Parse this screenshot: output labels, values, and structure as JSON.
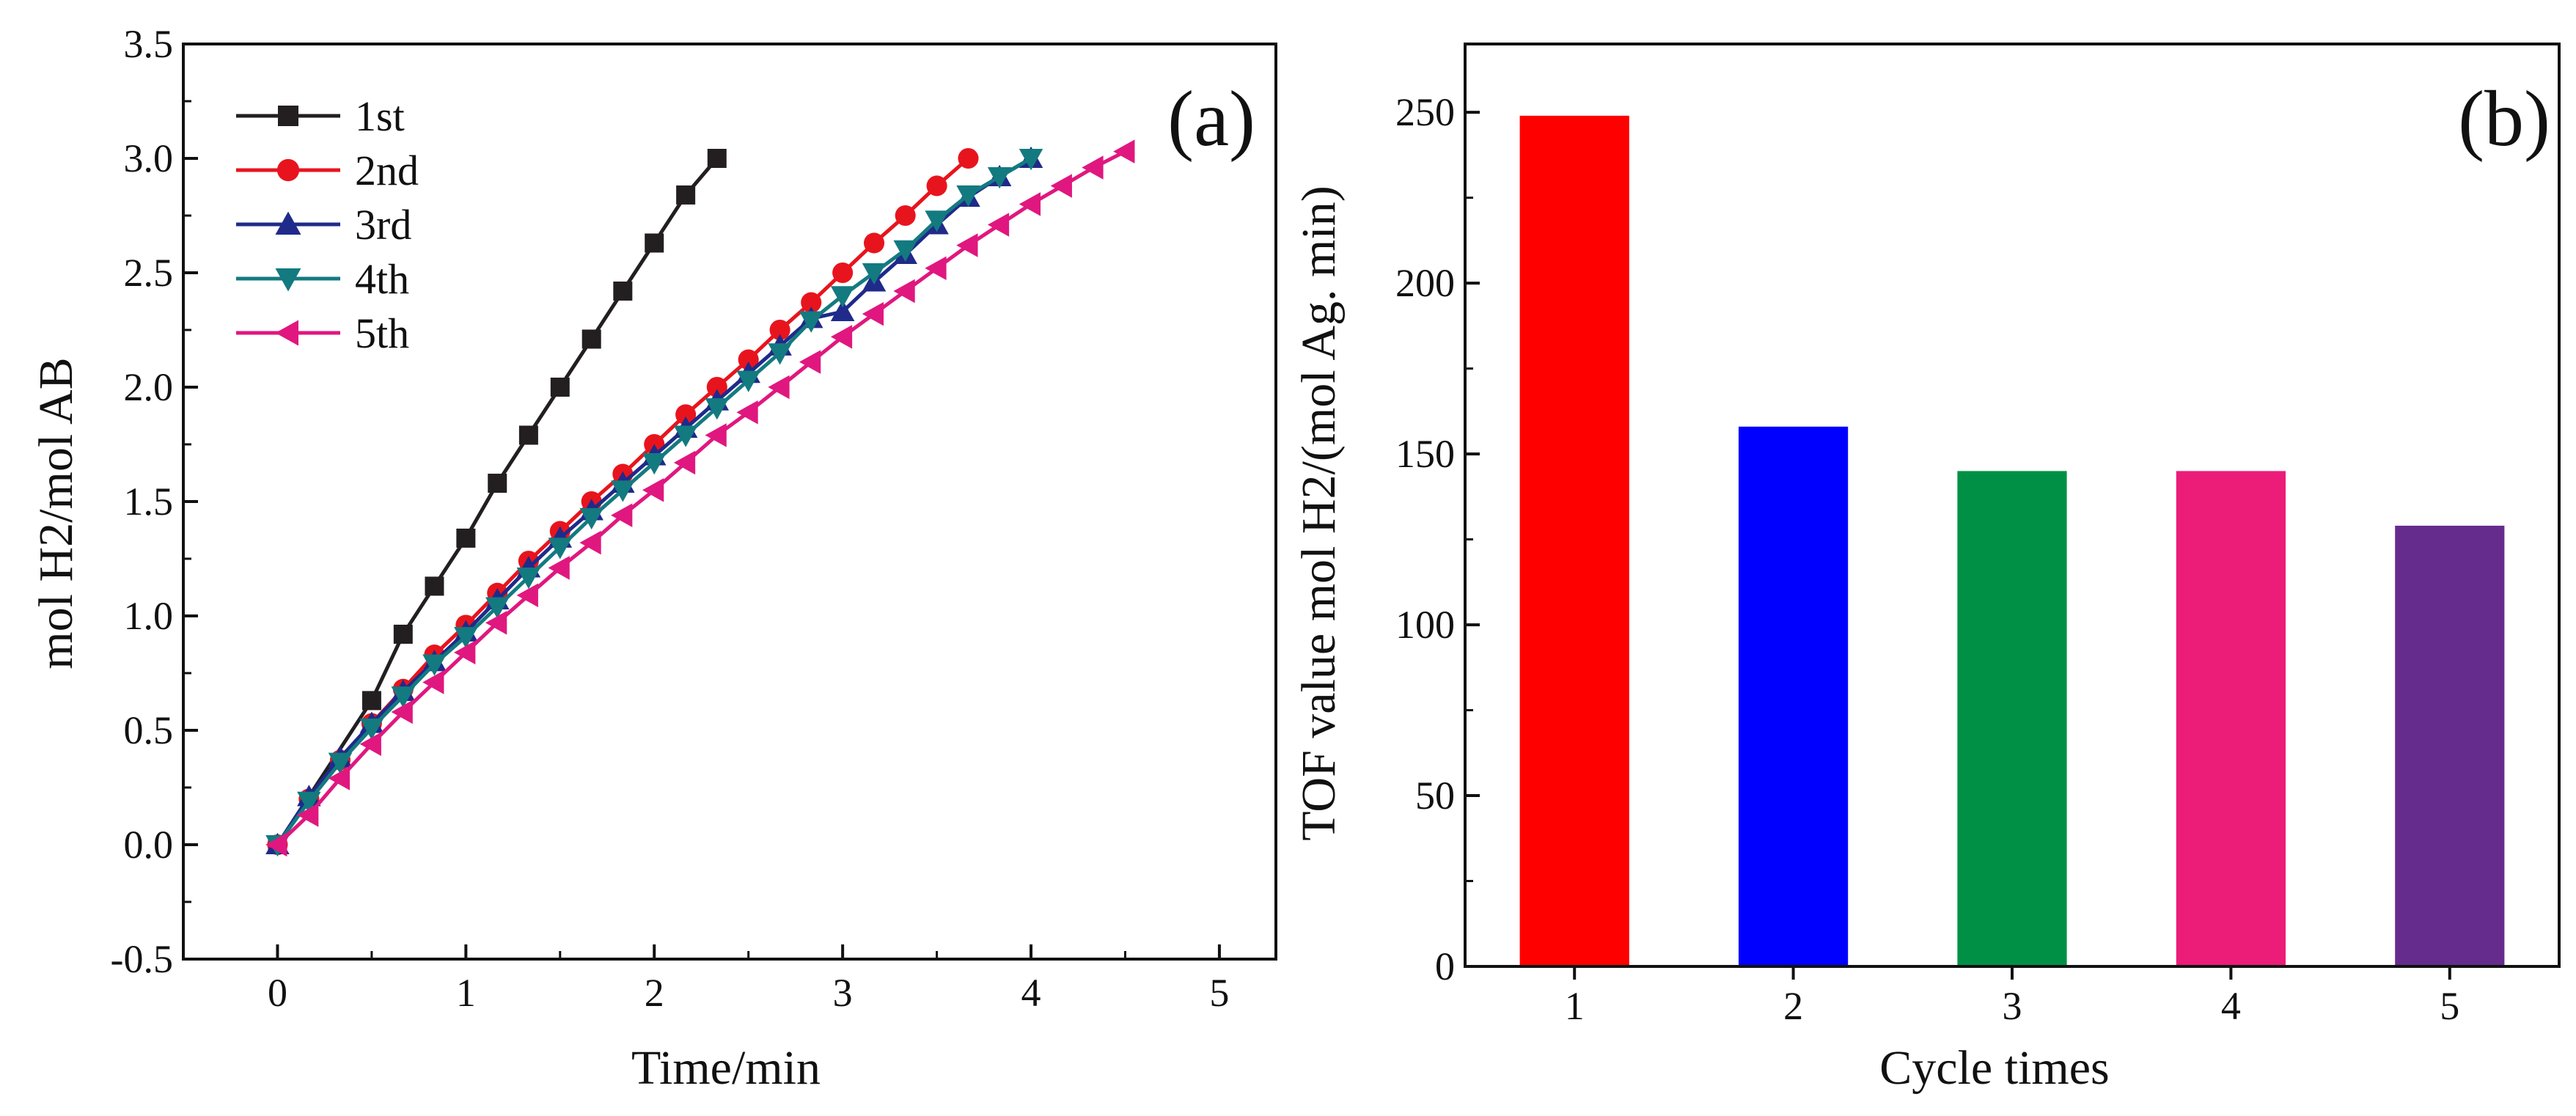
{
  "chart_data": [
    {
      "panel_label": "(a)",
      "type": "line",
      "xlabel": "Time/min",
      "ylabel": "mol H2/mol AB",
      "xlim": [
        -0.5,
        5.3
      ],
      "ylim": [
        -0.5,
        3.5
      ],
      "xticks": [
        0,
        1,
        2,
        3,
        4,
        5
      ],
      "xtick_labels": [
        "0",
        "1",
        "2",
        "3",
        "4",
        "5"
      ],
      "yticks": [
        -0.5,
        0.0,
        0.5,
        1.0,
        1.5,
        2.0,
        2.5,
        3.0,
        3.5
      ],
      "ytick_labels": [
        "-0.5",
        "0.0",
        "0.5",
        "1.0",
        "1.5",
        "2.0",
        "2.5",
        "3.0",
        "3.5"
      ],
      "legend_position": "top-left",
      "series": [
        {
          "name": "1st",
          "color": "#231f20",
          "marker": "square",
          "x": [
            0,
            0.5,
            0.667,
            0.833,
            1.0,
            1.167,
            1.333,
            1.5,
            1.667,
            1.833,
            2.0,
            2.167,
            2.333
          ],
          "y": [
            0,
            0.63,
            0.92,
            1.13,
            1.34,
            1.58,
            1.79,
            2.0,
            2.21,
            2.42,
            2.63,
            2.84,
            3.0
          ]
        },
        {
          "name": "2nd",
          "color": "#e8141d",
          "marker": "circle",
          "x": [
            0,
            0.167,
            0.333,
            0.5,
            0.667,
            0.833,
            1.0,
            1.167,
            1.333,
            1.5,
            1.667,
            1.833,
            2.0,
            2.167,
            2.333,
            2.5,
            2.667,
            2.833,
            3.0,
            3.167,
            3.333,
            3.5,
            3.667
          ],
          "y": [
            0,
            0.2,
            0.37,
            0.53,
            0.68,
            0.83,
            0.96,
            1.1,
            1.24,
            1.37,
            1.5,
            1.62,
            1.75,
            1.88,
            2.0,
            2.12,
            2.25,
            2.37,
            2.5,
            2.63,
            2.75,
            2.88,
            3.0
          ]
        },
        {
          "name": "3rd",
          "color": "#1f2a8a",
          "marker": "triangle-up",
          "x": [
            0,
            0.167,
            0.333,
            0.5,
            0.667,
            0.833,
            1.0,
            1.167,
            1.333,
            1.5,
            1.667,
            1.833,
            2.0,
            2.167,
            2.333,
            2.5,
            2.667,
            2.833,
            3.0,
            3.167,
            3.333,
            3.5,
            3.667,
            3.833,
            4.0
          ],
          "y": [
            0,
            0.21,
            0.38,
            0.53,
            0.67,
            0.8,
            0.93,
            1.07,
            1.21,
            1.34,
            1.46,
            1.58,
            1.7,
            1.82,
            1.94,
            2.06,
            2.18,
            2.3,
            2.33,
            2.46,
            2.58,
            2.71,
            2.83,
            2.92,
            3.0
          ]
        },
        {
          "name": "4th",
          "color": "#137a80",
          "marker": "triangle-down",
          "x": [
            0,
            0.167,
            0.333,
            0.5,
            0.667,
            0.833,
            1.0,
            1.167,
            1.333,
            1.5,
            1.667,
            1.833,
            2.0,
            2.167,
            2.333,
            2.5,
            2.667,
            2.833,
            3.0,
            3.167,
            3.333,
            3.5,
            3.667,
            3.833,
            4.0
          ],
          "y": [
            0,
            0.19,
            0.36,
            0.51,
            0.65,
            0.79,
            0.91,
            1.04,
            1.17,
            1.3,
            1.43,
            1.55,
            1.67,
            1.79,
            1.91,
            2.03,
            2.15,
            2.29,
            2.4,
            2.5,
            2.6,
            2.73,
            2.84,
            2.92,
            3.0
          ]
        },
        {
          "name": "5th",
          "color": "#e0177f",
          "marker": "triangle-left",
          "x": [
            0,
            0.167,
            0.333,
            0.5,
            0.667,
            0.833,
            1.0,
            1.167,
            1.333,
            1.5,
            1.667,
            1.833,
            2.0,
            2.167,
            2.333,
            2.5,
            2.667,
            2.833,
            3.0,
            3.167,
            3.333,
            3.5,
            3.667,
            3.833,
            4.0,
            4.167,
            4.333,
            4.5
          ],
          "y": [
            0,
            0.13,
            0.29,
            0.44,
            0.58,
            0.71,
            0.84,
            0.97,
            1.09,
            1.21,
            1.32,
            1.44,
            1.55,
            1.67,
            1.79,
            1.89,
            2.0,
            2.11,
            2.22,
            2.32,
            2.42,
            2.52,
            2.62,
            2.71,
            2.8,
            2.88,
            2.96,
            3.03
          ]
        }
      ]
    },
    {
      "panel_label": "(b)",
      "type": "bar",
      "xlabel": "Cycle times",
      "ylabel": "TOF value mol H2/(mol Ag. min)",
      "categories": [
        "1",
        "2",
        "3",
        "4",
        "5"
      ],
      "values": [
        249,
        158,
        145,
        145,
        129
      ],
      "colors": [
        "#fe0000",
        "#0000fe",
        "#009045",
        "#ec1c79",
        "#652c8e"
      ],
      "xlim": [
        0.5,
        5.5
      ],
      "ylim": [
        0,
        270
      ],
      "yticks": [
        0,
        50,
        100,
        150,
        200,
        250
      ],
      "ytick_labels": [
        "0",
        "50",
        "100",
        "150",
        "200",
        "250"
      ]
    }
  ]
}
